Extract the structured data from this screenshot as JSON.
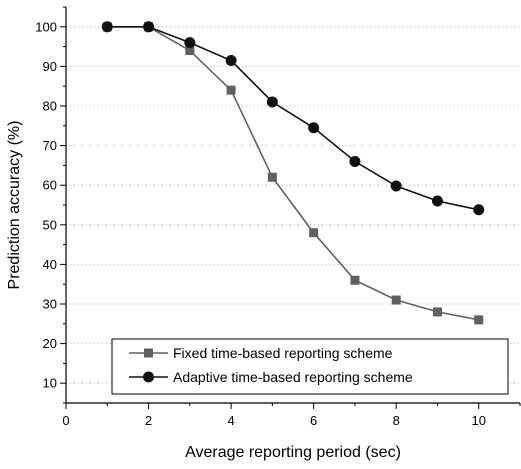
{
  "chart_data": {
    "type": "line",
    "title": "",
    "xlabel": "Average reporting period (sec)",
    "ylabel": "Prediction accuracy (%)",
    "xlim": [
      0,
      11
    ],
    "ylim": [
      5,
      105
    ],
    "xticks": [
      0,
      2,
      4,
      6,
      8,
      10
    ],
    "yticks": [
      10,
      20,
      30,
      40,
      50,
      60,
      70,
      80,
      90,
      100
    ],
    "x": [
      1,
      2,
      3,
      4,
      5,
      6,
      7,
      8,
      9,
      10
    ],
    "grid": "horizontal dotted",
    "legend_position": "bottom-right",
    "series": [
      {
        "name": "Fixed time-based reporting scheme",
        "marker": "square",
        "color": "#606060",
        "values": [
          100,
          100,
          94,
          84,
          62,
          48,
          36,
          31,
          28,
          26
        ]
      },
      {
        "name": "Adaptive time-based reporting scheme",
        "marker": "circle",
        "color": "#111111",
        "values": [
          100,
          100,
          96,
          91.5,
          81,
          74.5,
          66,
          59.8,
          56,
          53.8
        ]
      }
    ]
  }
}
